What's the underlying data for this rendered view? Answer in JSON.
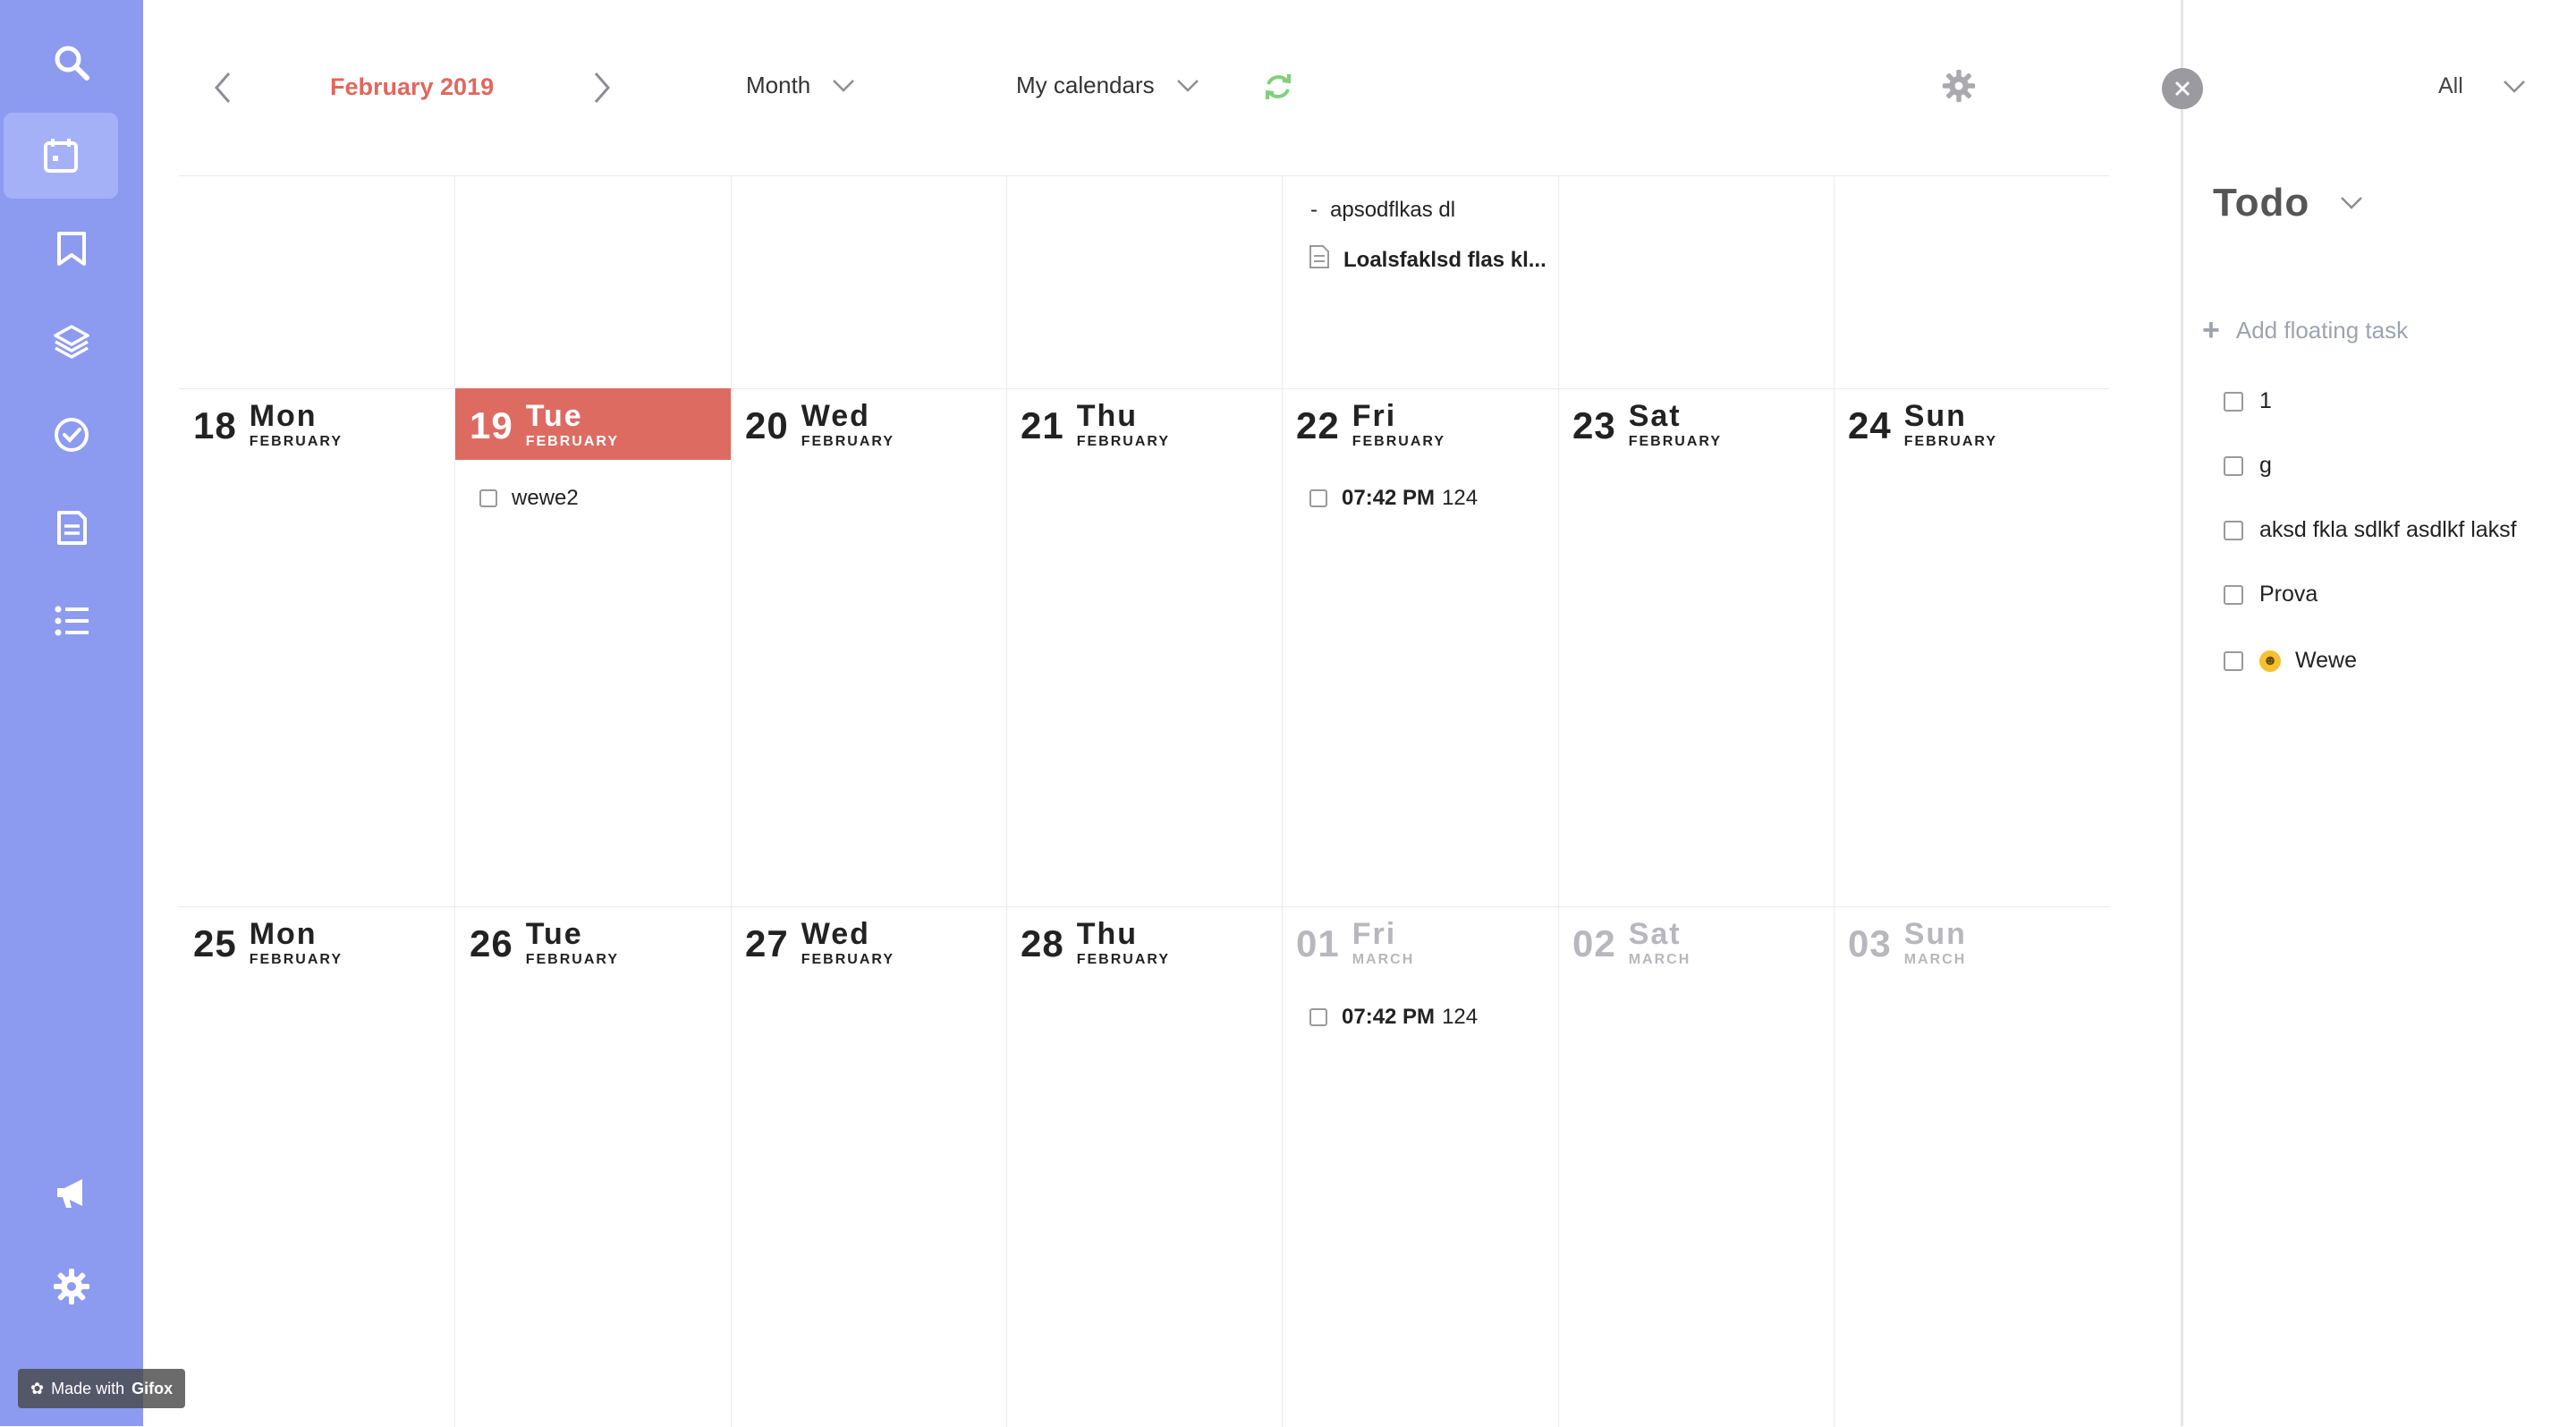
{
  "toolbar": {
    "month_title": "February 2019",
    "view_label": "Month",
    "calendars_label": "My calendars"
  },
  "sidebar": {
    "items": [
      "search",
      "calendar",
      "bookmark",
      "layers",
      "tasks",
      "notes",
      "lists"
    ],
    "bottom_items": [
      "announcements",
      "settings"
    ]
  },
  "watermark": {
    "prefix": "Made with",
    "brand": "Gifox"
  },
  "calendar": {
    "week1_events": {
      "fri_note": "apsodflkas dl",
      "fri_doc": "Loalsfaklsd flas kl..."
    },
    "weeks": [
      {
        "days": [
          {
            "num": "18",
            "name": "Mon",
            "month": "FEBRUARY"
          },
          {
            "num": "19",
            "name": "Tue",
            "month": "FEBRUARY"
          },
          {
            "num": "20",
            "name": "Wed",
            "month": "FEBRUARY"
          },
          {
            "num": "21",
            "name": "Thu",
            "month": "FEBRUARY"
          },
          {
            "num": "22",
            "name": "Fri",
            "month": "FEBRUARY"
          },
          {
            "num": "23",
            "name": "Sat",
            "month": "FEBRUARY"
          },
          {
            "num": "24",
            "name": "Sun",
            "month": "FEBRUARY"
          }
        ],
        "events": {
          "tue_task": "wewe2",
          "fri_time": "07:42 PM",
          "fri_title": "124"
        }
      },
      {
        "days": [
          {
            "num": "25",
            "name": "Mon",
            "month": "FEBRUARY"
          },
          {
            "num": "26",
            "name": "Tue",
            "month": "FEBRUARY"
          },
          {
            "num": "27",
            "name": "Wed",
            "month": "FEBRUARY"
          },
          {
            "num": "28",
            "name": "Thu",
            "month": "FEBRUARY"
          },
          {
            "num": "01",
            "name": "Fri",
            "month": "MARCH"
          },
          {
            "num": "02",
            "name": "Sat",
            "month": "MARCH"
          },
          {
            "num": "03",
            "name": "Sun",
            "month": "MARCH"
          }
        ],
        "events": {
          "fri_time": "07:42 PM",
          "fri_title": "124"
        }
      }
    ]
  },
  "panel": {
    "filter_label": "All",
    "title": "Todo",
    "add_task_label": "Add floating task",
    "tasks": [
      "1",
      "g",
      "aksd fkla sdlkf asdlkf laksf",
      "Prova",
      "Wewe"
    ]
  },
  "colors": {
    "sidebar": "#8c9bf0",
    "accent": "#e0675f",
    "today": "#de6b62",
    "refresh": "#7fd17b"
  }
}
